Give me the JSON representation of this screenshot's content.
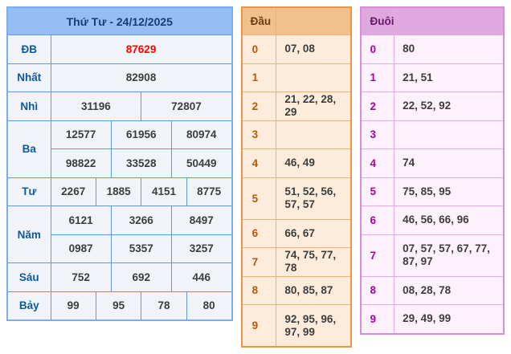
{
  "result_panel": {
    "title": "Thứ Tư - 24/12/2025",
    "rows": [
      {
        "label": "ĐB",
        "cells": [
          {
            "text": "87629",
            "span": 12,
            "special": true
          }
        ]
      },
      {
        "label": "Nhất",
        "cells": [
          {
            "text": "82908",
            "span": 12
          }
        ]
      },
      {
        "label": "Nhì",
        "cells": [
          {
            "text": "31196",
            "span": 6
          },
          {
            "text": "72807",
            "span": 6
          }
        ]
      },
      {
        "label": "Ba",
        "sub_rows": [
          [
            {
              "text": "12577",
              "span": 4
            },
            {
              "text": "61956",
              "span": 4
            },
            {
              "text": "80974",
              "span": 4
            }
          ],
          [
            {
              "text": "98822",
              "span": 4
            },
            {
              "text": "33528",
              "span": 4
            },
            {
              "text": "50449",
              "span": 4
            }
          ]
        ]
      },
      {
        "label": "Tư",
        "cells": [
          {
            "text": "2267",
            "span": 3
          },
          {
            "text": "1885",
            "span": 3
          },
          {
            "text": "4151",
            "span": 3
          },
          {
            "text": "8775",
            "span": 3
          }
        ]
      },
      {
        "label": "Năm",
        "sub_rows": [
          [
            {
              "text": "6121",
              "span": 4
            },
            {
              "text": "3266",
              "span": 4
            },
            {
              "text": "8497",
              "span": 4
            }
          ],
          [
            {
              "text": "0987",
              "span": 4
            },
            {
              "text": "5357",
              "span": 4
            },
            {
              "text": "3257",
              "span": 4
            }
          ]
        ]
      },
      {
        "label": "Sáu",
        "cells": [
          {
            "text": "752",
            "span": 4
          },
          {
            "text": "692",
            "span": 4
          },
          {
            "text": "446",
            "span": 4
          }
        ]
      },
      {
        "label": "Bảy",
        "cells": [
          {
            "text": "99",
            "span": 3
          },
          {
            "text": "95",
            "span": 3
          },
          {
            "text": "78",
            "span": 3
          },
          {
            "text": "80",
            "span": 3
          }
        ]
      }
    ]
  },
  "dau_panel": {
    "title": "Đầu",
    "rows": [
      {
        "digit": "0",
        "values": "07, 08"
      },
      {
        "digit": "1",
        "values": ""
      },
      {
        "digit": "2",
        "values": "21, 22, 28, 29"
      },
      {
        "digit": "3",
        "values": ""
      },
      {
        "digit": "4",
        "values": "46, 49"
      },
      {
        "digit": "5",
        "values": "51, 52, 56,\n57, 57",
        "tall": true
      },
      {
        "digit": "6",
        "values": "66, 67"
      },
      {
        "digit": "7",
        "values": "74, 75, 77, 78"
      },
      {
        "digit": "8",
        "values": "80, 85, 87"
      },
      {
        "digit": "9",
        "values": "92, 95, 96,\n97, 99",
        "tall": true
      }
    ]
  },
  "duoi_panel": {
    "title": "Đuôi",
    "rows": [
      {
        "digit": "0",
        "values": "80"
      },
      {
        "digit": "1",
        "values": "21, 51"
      },
      {
        "digit": "2",
        "values": "22, 52, 92"
      },
      {
        "digit": "3",
        "values": ""
      },
      {
        "digit": "4",
        "values": "74"
      },
      {
        "digit": "5",
        "values": "75, 85, 95"
      },
      {
        "digit": "6",
        "values": "46, 56, 66, 96"
      },
      {
        "digit": "7",
        "values": "07, 57, 57, 67, 77,\n87, 97",
        "tall": true
      },
      {
        "digit": "8",
        "values": "08, 28, 78"
      },
      {
        "digit": "9",
        "values": "29, 49, 99"
      }
    ]
  },
  "colors": {
    "blue_border": "#79aef3",
    "blue_header_bg": "#95bef5",
    "blue_label_text": "#0d5a9c",
    "special_prize_red": "#ff0000",
    "orange_border": "#e9964b",
    "orange_header_bg": "#f2c08d",
    "orange_digit_text": "#b25b04",
    "purple_border": "#da8bda",
    "purple_header_bg": "#dfa9e0",
    "purple_digit_text": "#a505a5",
    "value_text": "#3d3d3d"
  }
}
